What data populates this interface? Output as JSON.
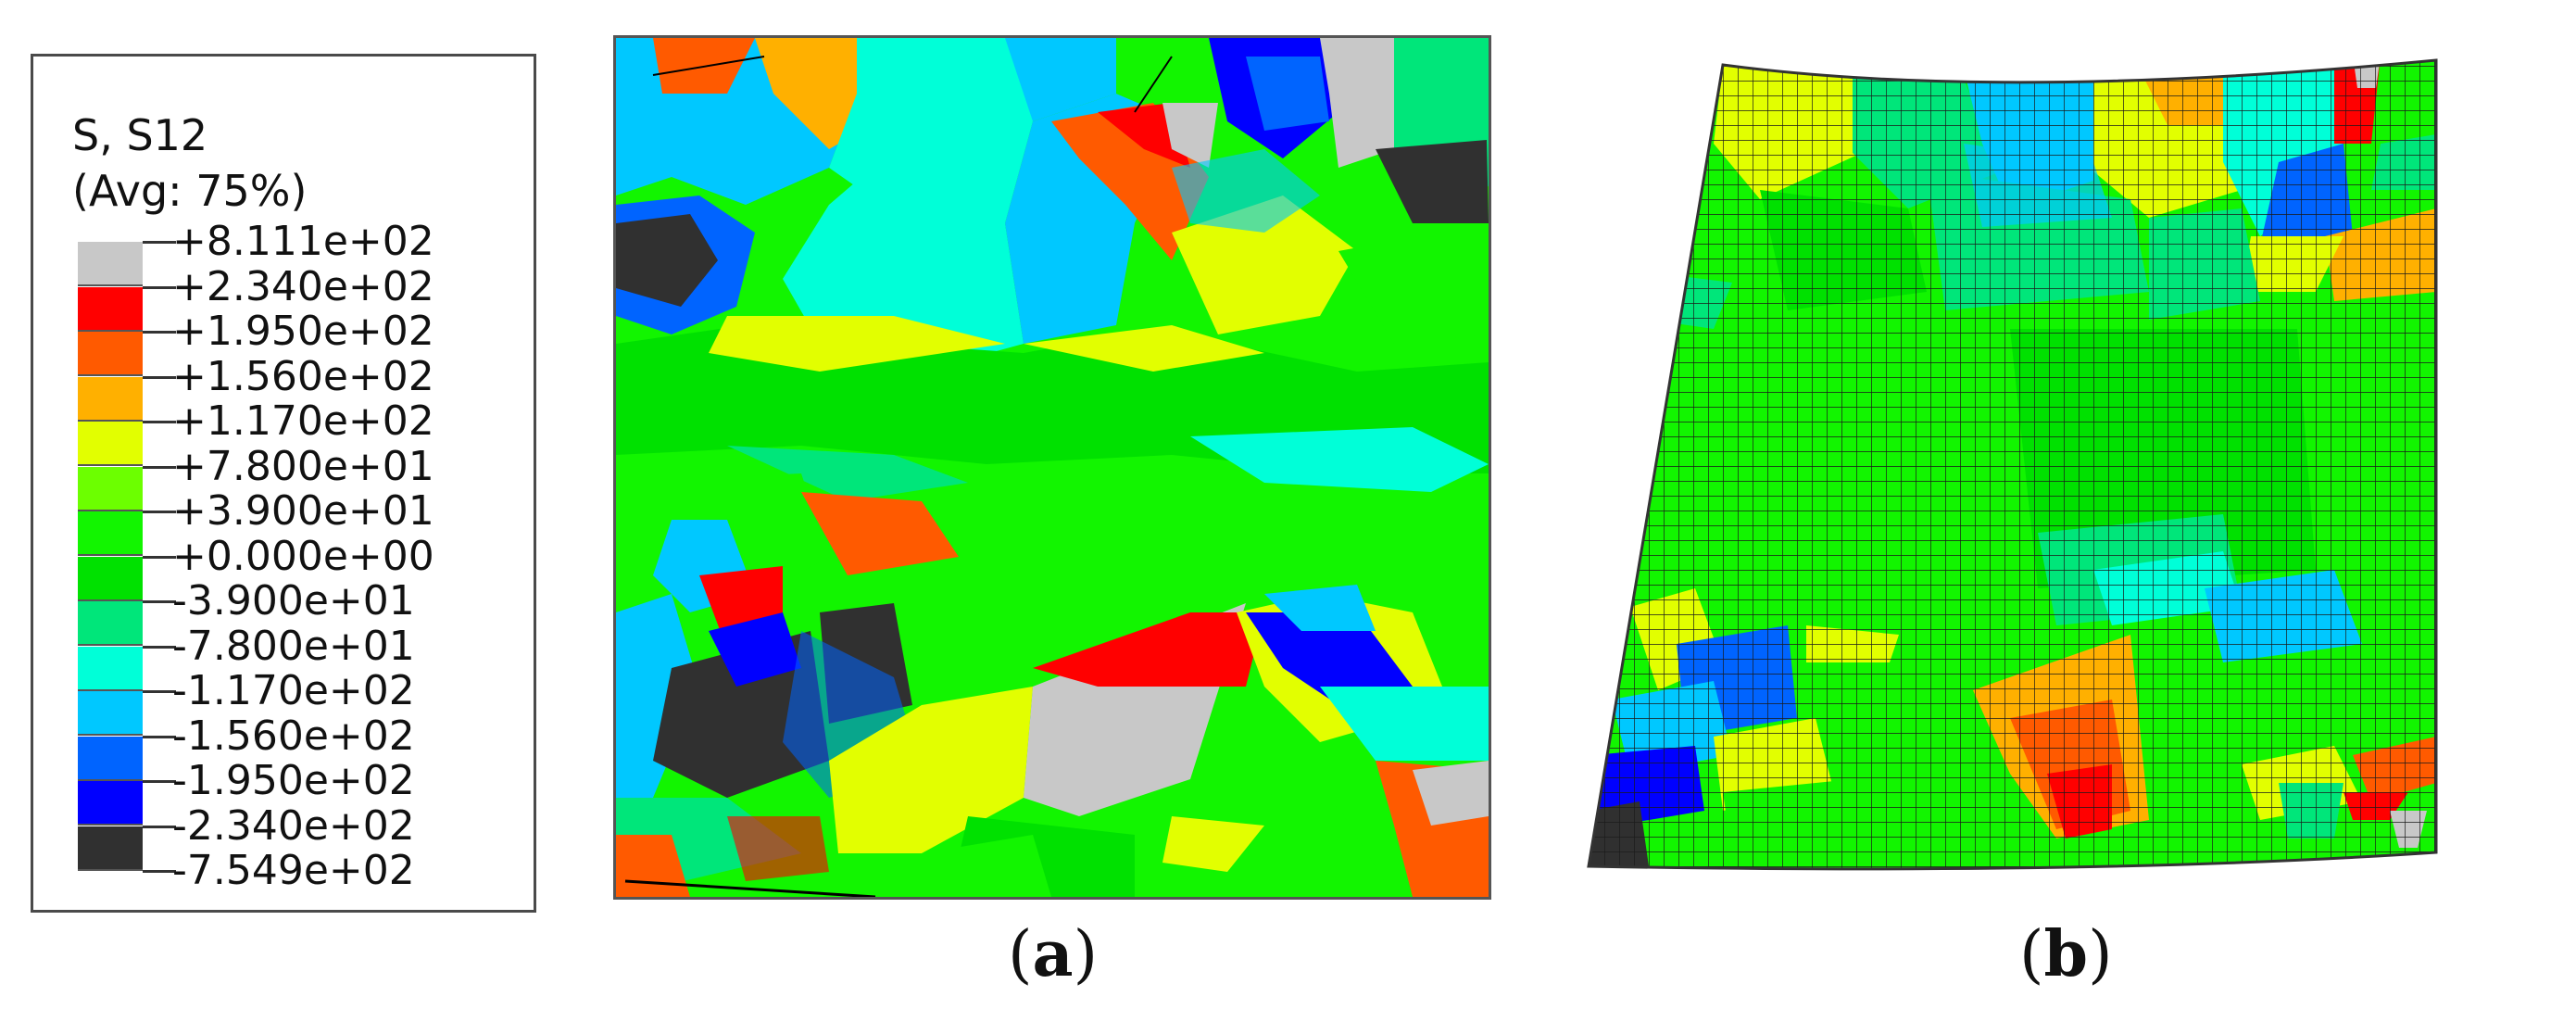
{
  "legend": {
    "title_line1": "S, S12",
    "title_line2": "(Avg: 75%)",
    "entries": [
      {
        "label": "+8.111e+02",
        "color": "#c8c8c8"
      },
      {
        "label": "+2.340e+02",
        "color": "#ff0000"
      },
      {
        "label": "+1.950e+02",
        "color": "#ff5a00"
      },
      {
        "label": "+1.560e+02",
        "color": "#ffb000"
      },
      {
        "label": "+1.170e+02",
        "color": "#e2ff00"
      },
      {
        "label": "+7.800e+01",
        "color": "#6cff00"
      },
      {
        "label": "+3.900e+01",
        "color": "#12f500"
      },
      {
        "label": "+0.000e+00",
        "color": "#00e100"
      },
      {
        "label": "-3.900e+01",
        "color": "#00e67a"
      },
      {
        "label": "-7.800e+01",
        "color": "#00ffd8"
      },
      {
        "label": "-1.170e+02",
        "color": "#00c8ff"
      },
      {
        "label": "-1.560e+02",
        "color": "#0064ff"
      },
      {
        "label": "-1.950e+02",
        "color": "#0000ff"
      },
      {
        "label": "-2.340e+02",
        "color": "#303030"
      },
      {
        "label": "-7.549e+02",
        "color": ""
      }
    ]
  },
  "panels": {
    "a": {
      "caption": "a"
    },
    "b": {
      "caption": "b"
    }
  }
}
